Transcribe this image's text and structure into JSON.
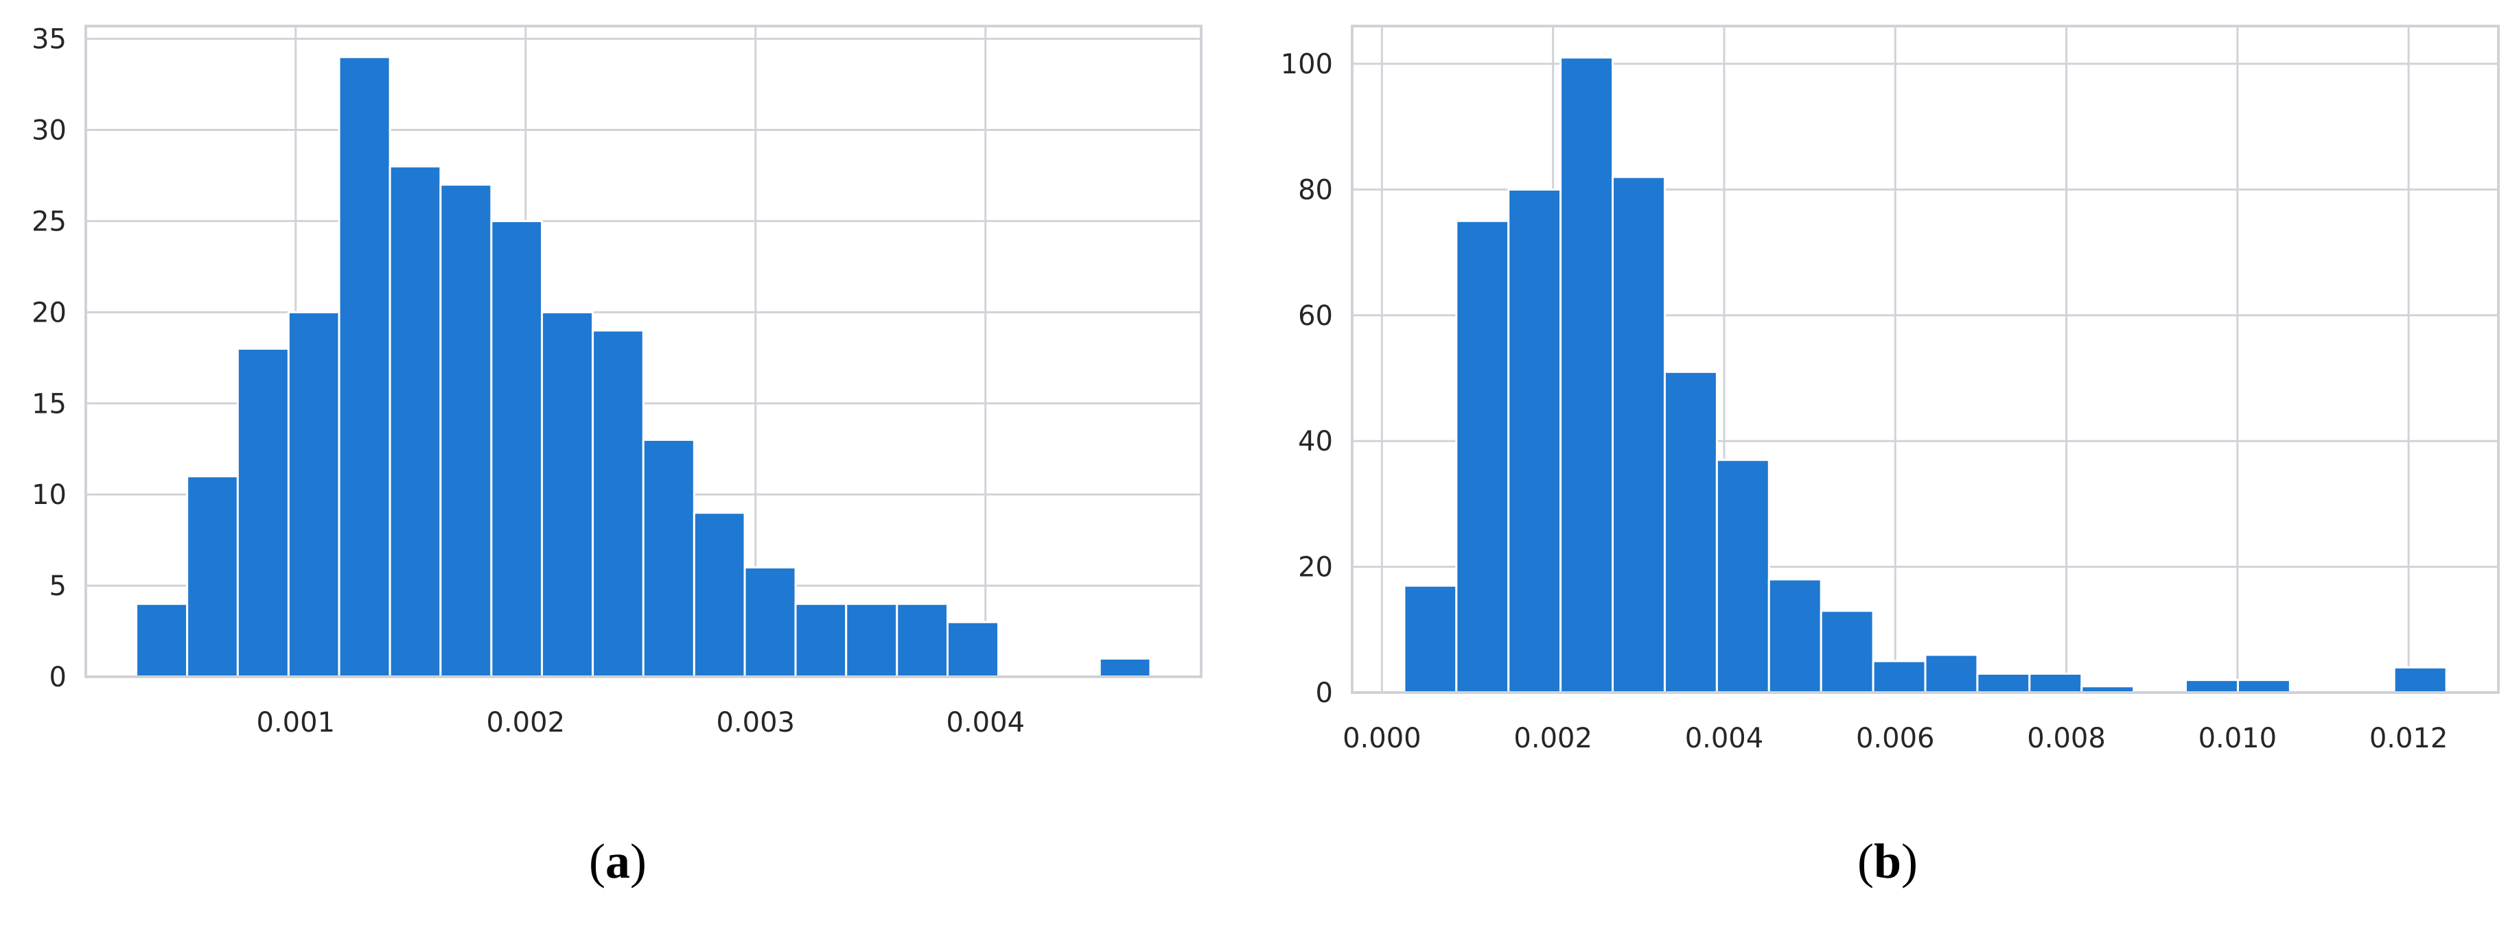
{
  "colors": {
    "bar": "#1f78d1",
    "grid": "#d0d3d9",
    "frame": "#cfd2d8",
    "text": "#262626"
  },
  "chart_data": [
    {
      "type": "bar",
      "caption": "a",
      "title": "",
      "xlabel": "",
      "ylabel": "",
      "grid": true,
      "bins": [
        {
          "x0": 0.000307,
          "x1": 0.000528,
          "value": 4
        },
        {
          "x0": 0.000528,
          "x1": 0.000748,
          "value": 11
        },
        {
          "x0": 0.000748,
          "x1": 0.000969,
          "value": 18
        },
        {
          "x0": 0.000969,
          "x1": 0.001189,
          "value": 20
        },
        {
          "x0": 0.001189,
          "x1": 0.00141,
          "value": 34
        },
        {
          "x0": 0.00141,
          "x1": 0.00163,
          "value": 28
        },
        {
          "x0": 0.00163,
          "x1": 0.001851,
          "value": 27
        },
        {
          "x0": 0.001851,
          "x1": 0.002071,
          "value": 25
        },
        {
          "x0": 0.002071,
          "x1": 0.002292,
          "value": 20
        },
        {
          "x0": 0.002292,
          "x1": 0.002512,
          "value": 19
        },
        {
          "x0": 0.002512,
          "x1": 0.002733,
          "value": 13
        },
        {
          "x0": 0.002733,
          "x1": 0.002953,
          "value": 9
        },
        {
          "x0": 0.002953,
          "x1": 0.003174,
          "value": 6
        },
        {
          "x0": 0.003174,
          "x1": 0.003394,
          "value": 4
        },
        {
          "x0": 0.003394,
          "x1": 0.003615,
          "value": 4
        },
        {
          "x0": 0.003615,
          "x1": 0.003835,
          "value": 4
        },
        {
          "x0": 0.003835,
          "x1": 0.004056,
          "value": 3
        },
        {
          "x0": 0.004056,
          "x1": 0.004276,
          "value": 0
        },
        {
          "x0": 0.004276,
          "x1": 0.004497,
          "value": 0
        },
        {
          "x0": 0.004497,
          "x1": 0.004717,
          "value": 1
        }
      ],
      "xlim": [
        8.72e-05,
        0.004938
      ],
      "ylim": [
        0,
        35.7
      ],
      "xticks": [
        0.001,
        0.002,
        0.003,
        0.004
      ],
      "xtick_labels": [
        "0.001",
        "0.002",
        "0.003",
        "0.004"
      ],
      "yticks": [
        0,
        5,
        10,
        15,
        20,
        25,
        30,
        35
      ],
      "ytick_labels": [
        "0",
        "5",
        "10",
        "15",
        "20",
        "25",
        "30",
        "35"
      ]
    },
    {
      "type": "bar",
      "caption": "b",
      "title": "",
      "xlabel": "",
      "ylabel": "",
      "grid": true,
      "bins": [
        {
          "x0": 0.000261,
          "x1": 0.00087,
          "value": 17
        },
        {
          "x0": 0.00087,
          "x1": 0.001479,
          "value": 75
        },
        {
          "x0": 0.001479,
          "x1": 0.002088,
          "value": 80
        },
        {
          "x0": 0.002088,
          "x1": 0.002697,
          "value": 101
        },
        {
          "x0": 0.002697,
          "x1": 0.003306,
          "value": 82
        },
        {
          "x0": 0.003306,
          "x1": 0.003915,
          "value": 51
        },
        {
          "x0": 0.003915,
          "x1": 0.004524,
          "value": 37
        },
        {
          "x0": 0.004524,
          "x1": 0.005133,
          "value": 18
        },
        {
          "x0": 0.005133,
          "x1": 0.005742,
          "value": 13
        },
        {
          "x0": 0.005742,
          "x1": 0.006351,
          "value": 5
        },
        {
          "x0": 0.006351,
          "x1": 0.00696,
          "value": 6
        },
        {
          "x0": 0.00696,
          "x1": 0.007569,
          "value": 3
        },
        {
          "x0": 0.007569,
          "x1": 0.008178,
          "value": 3
        },
        {
          "x0": 0.008178,
          "x1": 0.008787,
          "value": 1
        },
        {
          "x0": 0.008787,
          "x1": 0.009396,
          "value": 0
        },
        {
          "x0": 0.009396,
          "x1": 0.010005,
          "value": 2
        },
        {
          "x0": 0.010005,
          "x1": 0.010614,
          "value": 2
        },
        {
          "x0": 0.010614,
          "x1": 0.011223,
          "value": 0
        },
        {
          "x0": 0.011223,
          "x1": 0.011832,
          "value": 0
        },
        {
          "x0": 0.011832,
          "x1": 0.012441,
          "value": 4
        }
      ],
      "xlim": [
        -0.000348,
        0.01305
      ],
      "ylim": [
        0,
        106
      ],
      "xticks": [
        0.0,
        0.002,
        0.004,
        0.006,
        0.008,
        0.01,
        0.012
      ],
      "xtick_labels": [
        "0.000",
        "0.002",
        "0.004",
        "0.006",
        "0.008",
        "0.010",
        "0.012"
      ],
      "yticks": [
        0,
        20,
        40,
        60,
        80,
        100
      ],
      "ytick_labels": [
        "0",
        "20",
        "40",
        "60",
        "80",
        "100"
      ]
    }
  ]
}
